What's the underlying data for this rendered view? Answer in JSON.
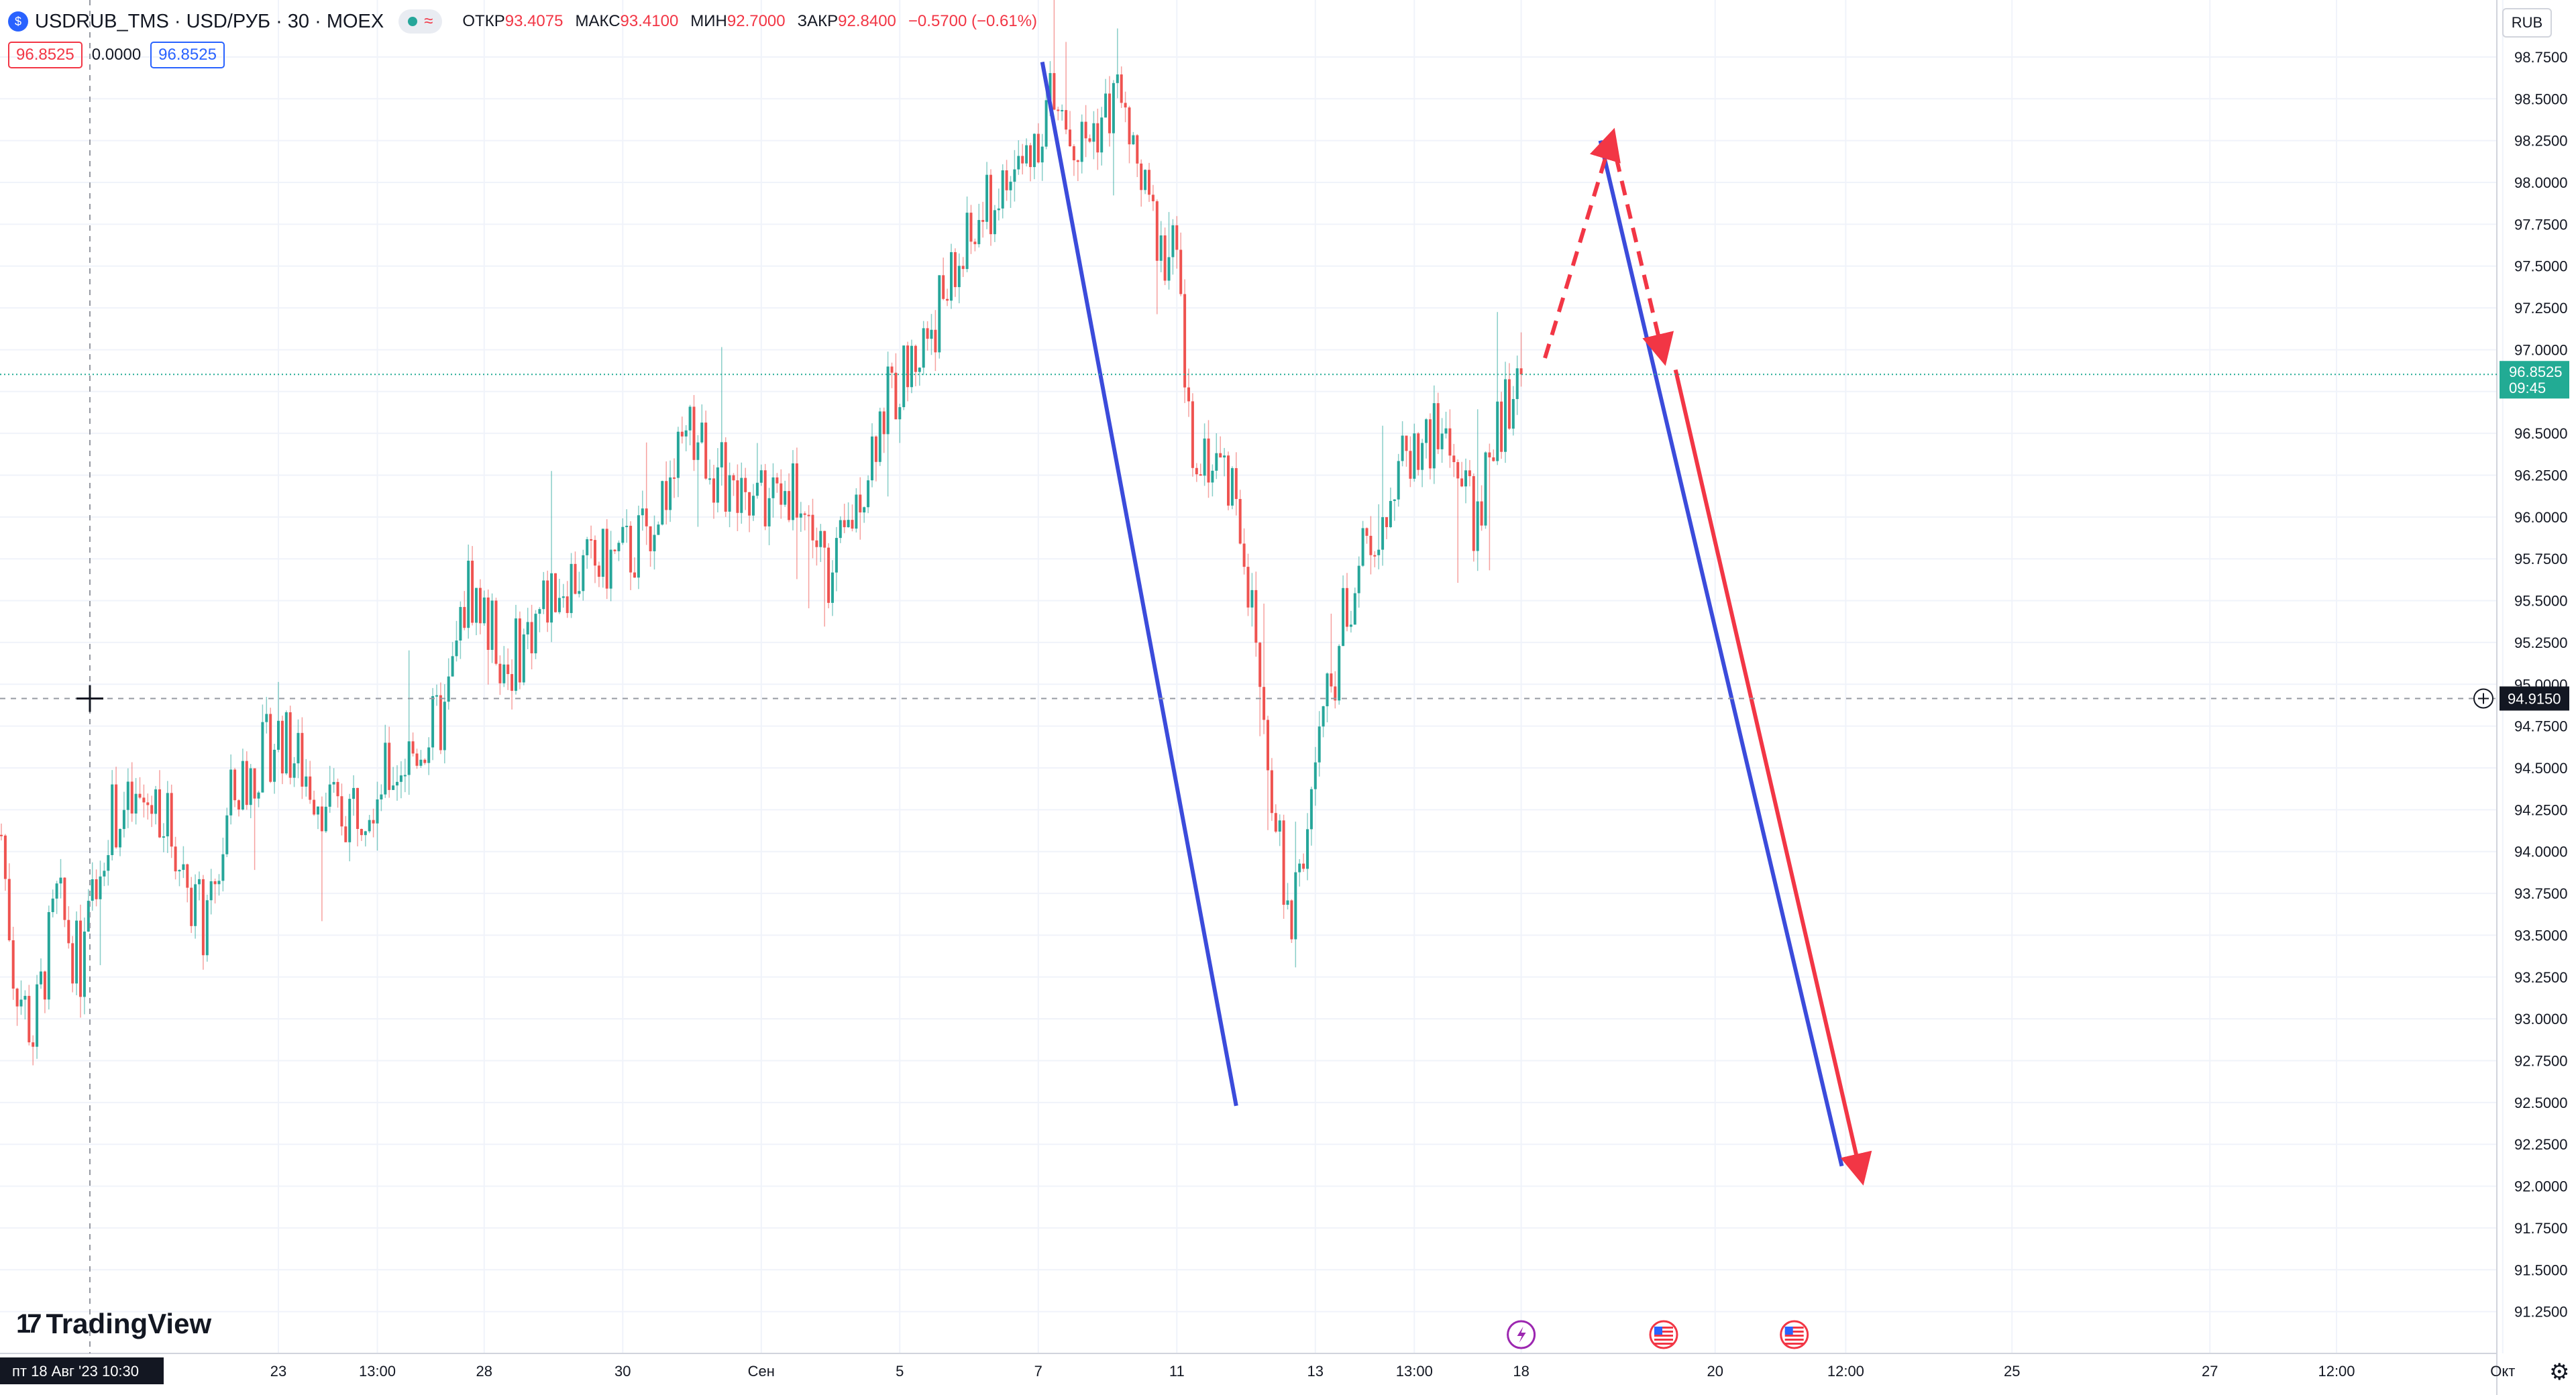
{
  "header": {
    "symbol": "USDRUB_TMS · USD/РУБ · 30 · MOEX",
    "open_label": "ОТКР",
    "open_value": "93.4075",
    "high_label": "МАКС",
    "high_value": "93.4100",
    "low_label": "МИН",
    "low_value": "92.7000",
    "close_label": "ЗАКР",
    "close_value": "92.8400",
    "change": "−0.5700 (−0.61%)",
    "wave_icon": "≈"
  },
  "quote": {
    "sell": "96.8525",
    "spread": "0.0000",
    "buy": "96.8525"
  },
  "currency_button": "RUB",
  "branding": "TradingView",
  "colors": {
    "up": "#26a69a",
    "down": "#ef5350",
    "draw_blue": "#3b4bdb",
    "draw_red": "#f23645",
    "last_price": "#22ab94"
  },
  "chart_data": {
    "type": "candlestick",
    "price_axis_ticks": [
      "98.7500",
      "98.5000",
      "98.2500",
      "98.0000",
      "97.7500",
      "97.5000",
      "97.2500",
      "97.0000",
      "96.7500",
      "96.5000",
      "96.2500",
      "96.0000",
      "95.7500",
      "95.5000",
      "95.2500",
      "95.0000",
      "94.7500",
      "94.5000",
      "94.2500",
      "94.0000",
      "93.7500",
      "93.5000",
      "93.2500",
      "93.0000",
      "92.7500",
      "92.5000",
      "92.2500",
      "92.0000",
      "91.7500",
      "91.5000",
      "91.2500"
    ],
    "ylim": [
      91.0,
      98.85
    ],
    "time_axis_labels": [
      {
        "label": "23",
        "i": 70
      },
      {
        "label": "13:00",
        "i": 95
      },
      {
        "label": "28",
        "i": 122
      },
      {
        "label": "30",
        "i": 157
      },
      {
        "label": "Сен",
        "i": 192
      },
      {
        "label": "5",
        "i": 227
      },
      {
        "label": "7",
        "i": 262
      },
      {
        "label": "11",
        "i": 297
      },
      {
        "label": "13",
        "i": 332
      },
      {
        "label": "13:00",
        "i": 357
      },
      {
        "label": "18",
        "i": 384
      },
      {
        "label": "20",
        "i": 433
      },
      {
        "label": "12:00",
        "i": 466
      },
      {
        "label": "25",
        "i": 508
      },
      {
        "label": "27",
        "i": 558
      },
      {
        "label": "12:00",
        "i": 590
      },
      {
        "label": "Окт",
        "i": 632
      }
    ],
    "crosshair_time_label": "пт 18 Авг '23   10:30",
    "crosshair_price": "94.9150",
    "last_price": "96.8525",
    "last_price_time": "09:45",
    "anchors": [
      [
        0,
        94.1
      ],
      [
        3,
        93.3
      ],
      [
        8,
        92.9
      ],
      [
        14,
        93.7
      ],
      [
        20,
        93.3
      ],
      [
        27,
        94.2
      ],
      [
        40,
        94.3
      ],
      [
        52,
        93.5
      ],
      [
        58,
        94.3
      ],
      [
        70,
        94.7
      ],
      [
        85,
        94.2
      ],
      [
        100,
        94.5
      ],
      [
        112,
        94.8
      ],
      [
        118,
        95.6
      ],
      [
        128,
        95.1
      ],
      [
        140,
        95.6
      ],
      [
        160,
        95.8
      ],
      [
        175,
        96.5
      ],
      [
        188,
        96.0
      ],
      [
        200,
        96.2
      ],
      [
        210,
        95.6
      ],
      [
        222,
        96.6
      ],
      [
        232,
        97.0
      ],
      [
        248,
        97.8
      ],
      [
        258,
        98.1
      ],
      [
        265,
        98.5
      ],
      [
        272,
        98.2
      ],
      [
        282,
        98.5
      ],
      [
        290,
        97.8
      ],
      [
        297,
        97.5
      ],
      [
        300,
        96.5
      ],
      [
        312,
        96.2
      ],
      [
        318,
        95.0
      ],
      [
        322,
        94.2
      ],
      [
        325,
        93.5
      ],
      [
        332,
        94.5
      ],
      [
        340,
        95.5
      ],
      [
        348,
        96.0
      ],
      [
        356,
        96.4
      ],
      [
        365,
        96.5
      ],
      [
        372,
        96.0
      ],
      [
        378,
        96.5
      ],
      [
        384,
        96.85
      ]
    ],
    "drawings": [
      {
        "type": "trend_line",
        "color": "blue",
        "from": [
          263,
          98.72
        ],
        "to": [
          312,
          92.48
        ]
      },
      {
        "type": "trend_line",
        "color": "blue",
        "from": [
          404,
          98.25
        ],
        "to": [
          465,
          92.12
        ]
      },
      {
        "type": "dashed_arrow",
        "color": "red",
        "from": [
          390,
          96.95
        ],
        "to": [
          407,
          98.28
        ]
      },
      {
        "type": "dashed_arrow",
        "color": "red",
        "from": [
          408,
          98.15
        ],
        "to": [
          420,
          96.95
        ]
      },
      {
        "type": "arrow",
        "color": "red",
        "from": [
          423,
          96.88
        ],
        "to": [
          470,
          92.05
        ]
      }
    ],
    "event_markers": [
      {
        "icon": "lightning-icon",
        "i": 384
      },
      {
        "icon": "us-flag-icon",
        "i": 420
      },
      {
        "icon": "us-flag-icon",
        "i": 453
      }
    ]
  }
}
